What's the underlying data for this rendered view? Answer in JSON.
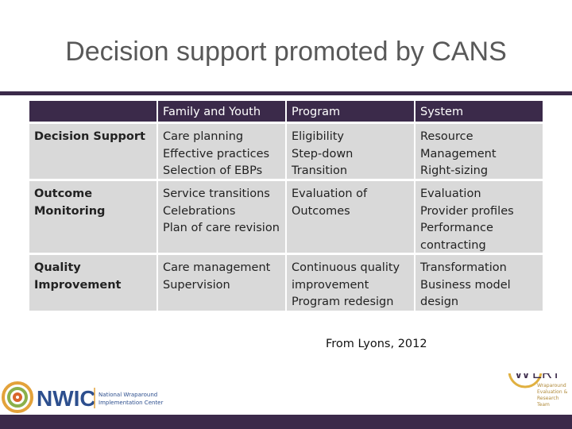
{
  "title": "Decision support promoted by CANS",
  "table": {
    "header": [
      "Family and Youth",
      "Program",
      "System"
    ],
    "rows": [
      {
        "label": [
          "Decision Support"
        ],
        "cells": [
          [
            "Care planning",
            "Effective practices",
            "Selection of EBPs"
          ],
          [
            "Eligibility",
            "Step-down",
            "Transition"
          ],
          [
            "Resource",
            "Management",
            "Right-sizing"
          ]
        ]
      },
      {
        "label": [
          "Outcome",
          "Monitoring"
        ],
        "cells": [
          [
            "Service transitions",
            "Celebrations",
            "Plan of care revision"
          ],
          [
            "Evaluation of",
            "Outcomes"
          ],
          [
            "Evaluation",
            "Provider profiles",
            "Performance",
            "contracting"
          ]
        ]
      },
      {
        "label": [
          "Quality",
          "Improvement"
        ],
        "cells": [
          [
            "Care management",
            "Supervision"
          ],
          [
            "Continuous quality",
            "improvement",
            "Program redesign"
          ],
          [
            "Transformation",
            "Business model",
            "design"
          ]
        ]
      }
    ]
  },
  "source": "From Lyons, 2012",
  "logos": {
    "nwic": {
      "name": "NWIC",
      "line1": "National Wraparound",
      "line2": "Implementation Center"
    },
    "wert": {
      "w": "W",
      "rest": "ERT",
      "lines": [
        "Wraparound",
        "Evaluation &",
        "Research",
        "Team"
      ]
    }
  }
}
